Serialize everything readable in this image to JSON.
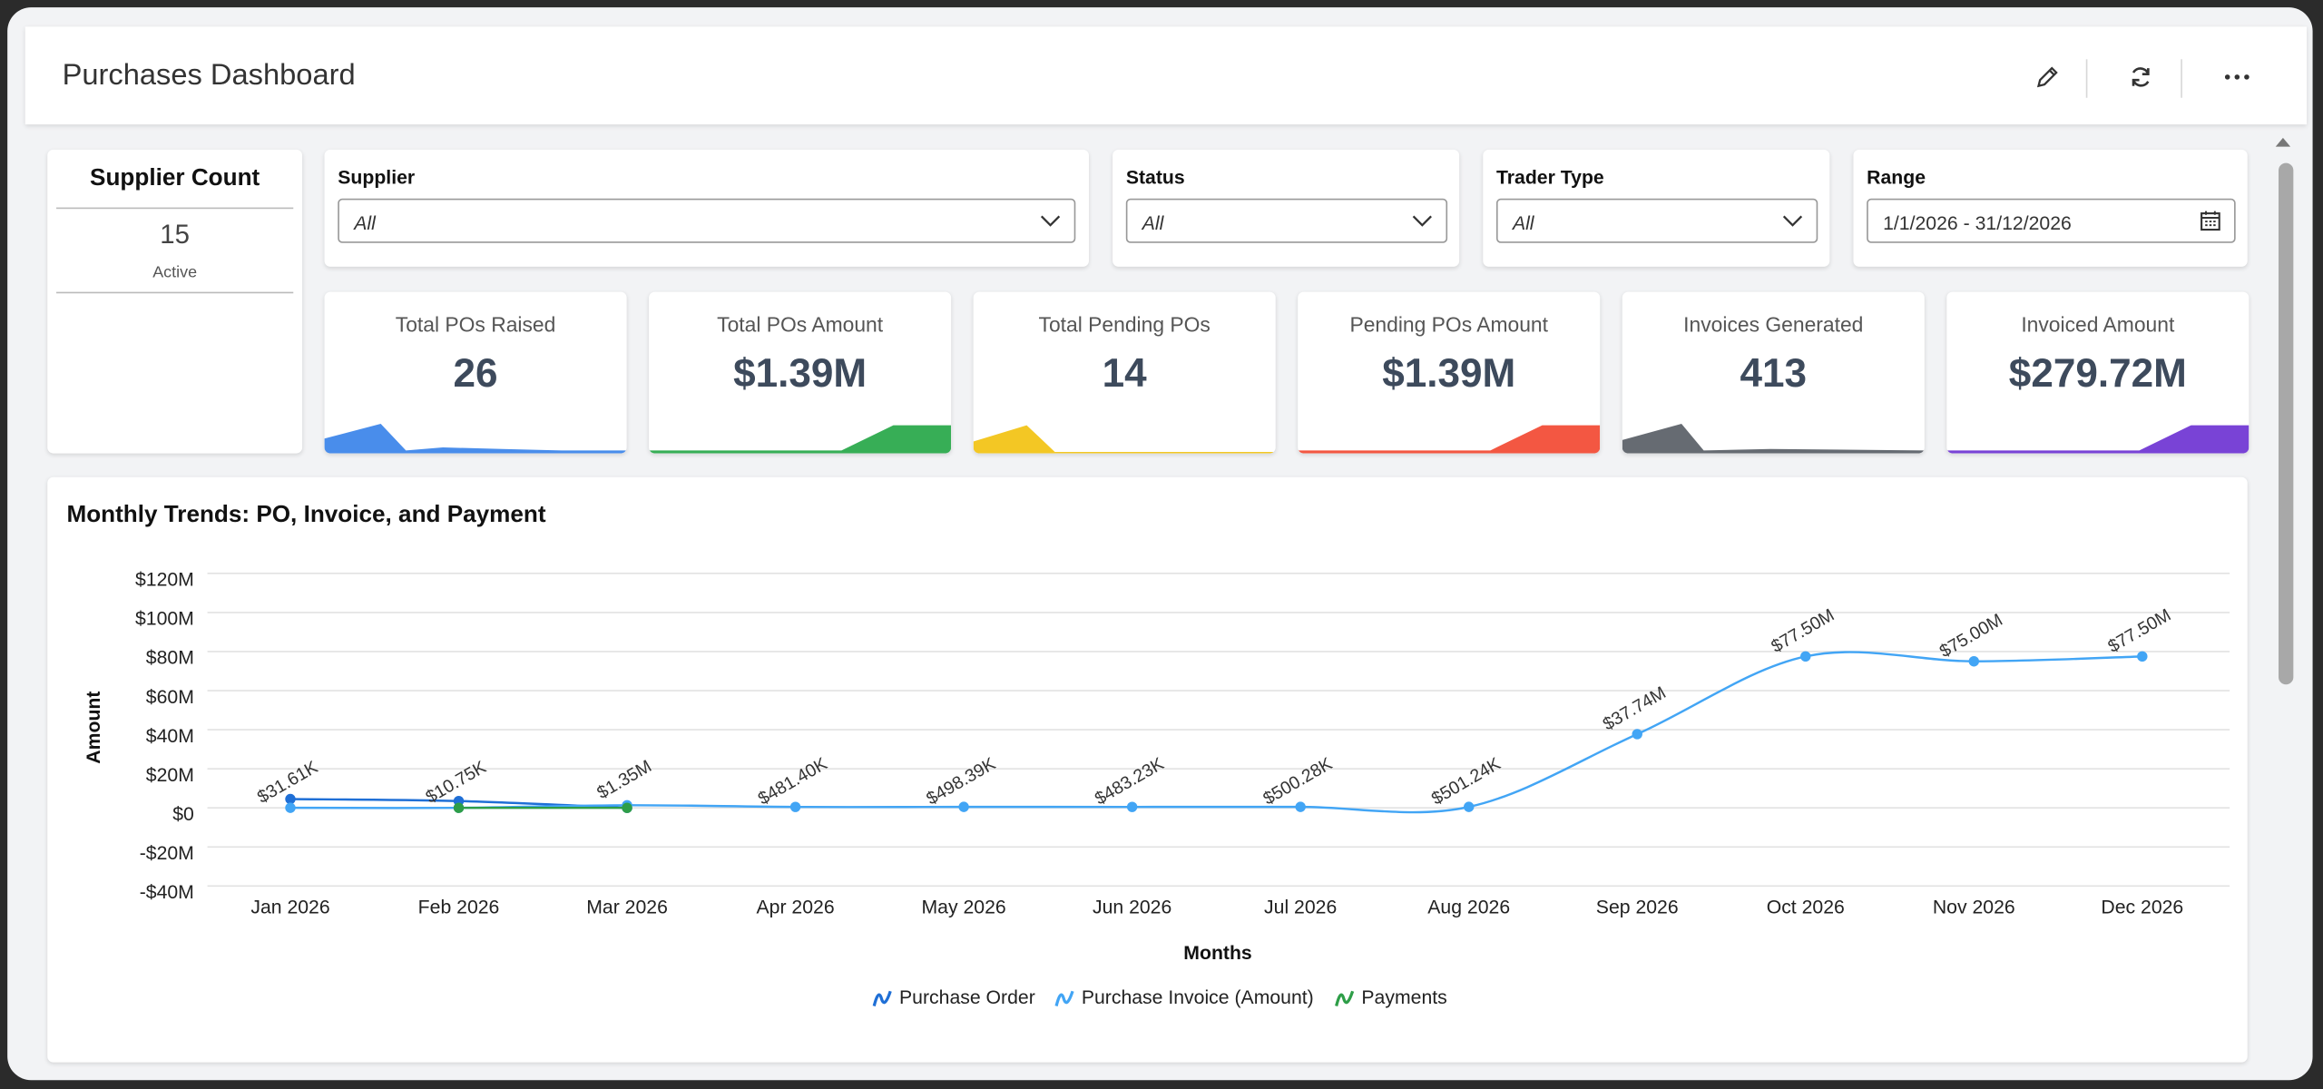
{
  "header": {
    "title": "Purchases Dashboard"
  },
  "supplier_count": {
    "title": "Supplier Count",
    "value": "15",
    "caption": "Active"
  },
  "filters": [
    {
      "label": "Supplier",
      "value": "All"
    },
    {
      "label": "Status",
      "value": "All"
    },
    {
      "label": "Trader Type",
      "value": "All"
    },
    {
      "label": "Range",
      "value": "1/1/2026 - 31/12/2026"
    }
  ],
  "kpis": [
    {
      "label": "Total POs Raised",
      "value": "26"
    },
    {
      "label": "Total POs Amount",
      "value": "$1.39M"
    },
    {
      "label": "Total Pending POs",
      "value": "14"
    },
    {
      "label": "Pending POs Amount",
      "value": "$1.39M"
    },
    {
      "label": "Invoices Generated",
      "value": "413"
    },
    {
      "label": "Invoiced Amount",
      "value": "$279.72M"
    }
  ],
  "chart_data": {
    "type": "line",
    "title": "Monthly Trends: PO, Invoice, and Payment",
    "x_label": "Months",
    "y_label": "Amount",
    "categories": [
      "Jan 2026",
      "Feb 2026",
      "Mar 2026",
      "Apr 2026",
      "May 2026",
      "Jun 2026",
      "Jul 2026",
      "Aug 2026",
      "Sep 2026",
      "Oct 2026",
      "Nov 2026",
      "Dec 2026"
    ],
    "series": [
      {
        "name": "Purchase Order",
        "color": "#1f6fd6",
        "values": [
          4500000,
          3500000,
          0,
          null,
          null,
          null,
          null,
          null,
          null,
          null,
          null,
          null
        ]
      },
      {
        "name": "Purchase Invoice (Amount)",
        "color": "#42a5f5",
        "values": [
          31610,
          10750,
          1350000,
          481400,
          498390,
          483230,
          500280,
          501240,
          37740000,
          77500000,
          75000000,
          77500000
        ],
        "value_labels": [
          "$31.61K",
          "$10.75K",
          "$1.35M",
          "$481.40K",
          "$498.39K",
          "$483.23K",
          "$500.28K",
          "$501.24K",
          "$37.74M",
          "$77.50M",
          "$75.00M",
          "$77.50M"
        ]
      },
      {
        "name": "Payments",
        "color": "#2e9e48",
        "values": [
          null,
          0,
          0,
          null,
          null,
          null,
          null,
          null,
          null,
          null,
          null,
          null
        ]
      }
    ],
    "ylim": [
      -40000000,
      120000000
    ],
    "yticks": [
      {
        "value": -40000000,
        "label": "-$40M"
      },
      {
        "value": -20000000,
        "label": "-$20M"
      },
      {
        "value": 0,
        "label": "$0"
      },
      {
        "value": 20000000,
        "label": "$20M"
      },
      {
        "value": 40000000,
        "label": "$40M"
      },
      {
        "value": 60000000,
        "label": "$60M"
      },
      {
        "value": 80000000,
        "label": "$80M"
      },
      {
        "value": 100000000,
        "label": "$100M"
      },
      {
        "value": 120000000,
        "label": "$120M"
      }
    ],
    "grid": true,
    "legend": "bottom"
  }
}
